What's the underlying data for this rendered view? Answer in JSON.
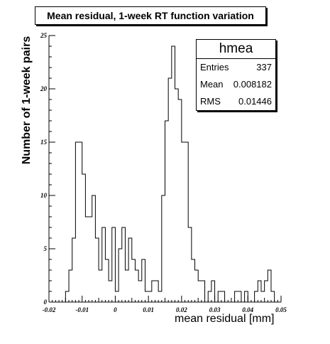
{
  "chart_data": {
    "type": "histogram",
    "title": "Mean residual, 1-week RT function variation",
    "xlabel": "mean residual [mm]",
    "ylabel": "Number of 1-week pairs",
    "xlim": [
      -0.02,
      0.05
    ],
    "ylim": [
      0,
      25
    ],
    "x_ticks": [
      "-0.02",
      "-0.01",
      "0",
      "0.01",
      "0.02",
      "0.03",
      "0.04",
      "0.05"
    ],
    "y_ticks": [
      "0",
      "5",
      "10",
      "15",
      "20",
      "25"
    ],
    "bin_edges_start": -0.015,
    "bin_width": 0.001,
    "counts": [
      1,
      3,
      6,
      15,
      15,
      12,
      8,
      8,
      10,
      6,
      3,
      7,
      4,
      2,
      7,
      1,
      5,
      7,
      3,
      6,
      4,
      3,
      2,
      4,
      1,
      1,
      2,
      2,
      1,
      10,
      17,
      21,
      24,
      20,
      19,
      15,
      15,
      7,
      4,
      3,
      2,
      2,
      0,
      1,
      2,
      0,
      1,
      1,
      0,
      0,
      0,
      1,
      1,
      0,
      1,
      0,
      0,
      1,
      2,
      1,
      2,
      3,
      1,
      0,
      0
    ],
    "legend": {
      "name": "hmea",
      "rows": [
        {
          "label": "Entries",
          "value": "337"
        },
        {
          "label": "Mean",
          "value": "0.008182"
        },
        {
          "label": "RMS",
          "value": "0.01446"
        }
      ]
    }
  }
}
